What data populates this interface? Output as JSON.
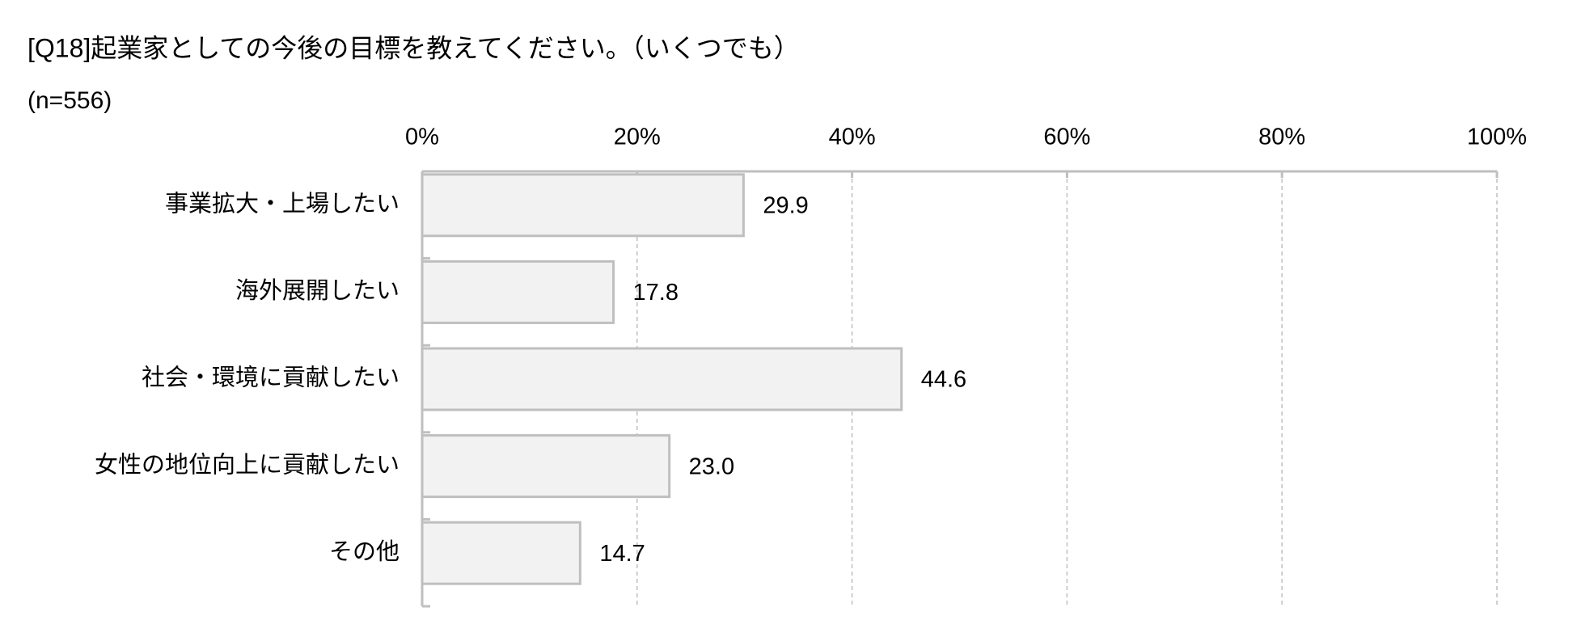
{
  "chart_data": {
    "type": "hbar",
    "title": "[Q18]起業家としての今後の目標を教えてください。（いくつでも）",
    "subtitle": "(n=556)",
    "categories": [
      "事業拡大・上場したい",
      "海外展開したい",
      "社会・環境に貢献したい",
      "女性の地位向上に貢献したい",
      "その他"
    ],
    "values": [
      29.9,
      17.8,
      44.6,
      23.0,
      14.7
    ],
    "value_labels": [
      "29.9",
      "17.8",
      "44.6",
      "23.0",
      "14.7"
    ],
    "color": "#f2f2f2",
    "xlim": [
      0,
      100
    ],
    "xticks": [
      {
        "value": 0,
        "label": "0%"
      },
      {
        "value": 20,
        "label": "20%"
      },
      {
        "value": 40,
        "label": "40%"
      },
      {
        "value": 60,
        "label": "60%"
      },
      {
        "value": 80,
        "label": "80%"
      },
      {
        "value": 100,
        "label": "100%"
      }
    ],
    "grid": true
  }
}
